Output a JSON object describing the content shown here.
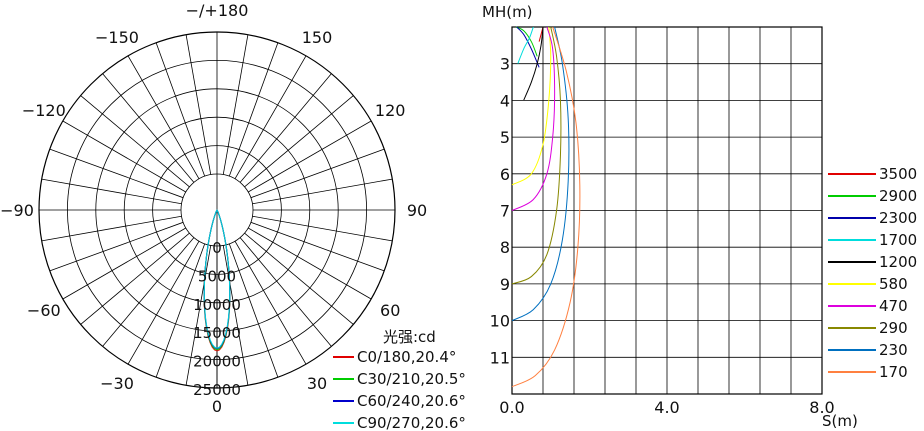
{
  "chart_data": [
    {
      "type": "polar",
      "angle_labels": [
        {
          "angle": 180,
          "text": "−/+180"
        },
        {
          "angle": 150,
          "text": "150"
        },
        {
          "angle": -150,
          "text": "−150"
        },
        {
          "angle": 120,
          "text": "120"
        },
        {
          "angle": -120,
          "text": "−120"
        },
        {
          "angle": 90,
          "text": "90"
        },
        {
          "angle": -90,
          "text": "−90"
        },
        {
          "angle": 60,
          "text": "60"
        },
        {
          "angle": -60,
          "text": "−60"
        },
        {
          "angle": 30,
          "text": "30"
        },
        {
          "angle": -30,
          "text": "−30"
        },
        {
          "angle": 0,
          "text": "0"
        }
      ],
      "radial_ticks": [
        {
          "value": 0,
          "text": "0"
        },
        {
          "value": 5000,
          "text": "5000"
        },
        {
          "value": 10000,
          "text": "10000"
        },
        {
          "value": 15000,
          "text": "15000"
        },
        {
          "value": 20000,
          "text": "20000"
        },
        {
          "value": 25000,
          "text": "25000"
        }
      ],
      "rmax": 25000,
      "legend_title": "光强:cd",
      "series": [
        {
          "name": "C0/180,20.4°",
          "color": "#e00000",
          "beam_angle": 20.4,
          "peak": 24800
        },
        {
          "name": "C30/210,20.5°",
          "color": "#00cc00",
          "beam_angle": 20.5,
          "peak": 24600
        },
        {
          "name": "C60/240,20.6°",
          "color": "#0000cc",
          "beam_angle": 20.6,
          "peak": 24400
        },
        {
          "name": "C90/270,20.6°",
          "color": "#00dddd",
          "beam_angle": 20.6,
          "peak": 24300
        }
      ]
    },
    {
      "type": "line",
      "ylabel": "MH(m)",
      "xlabel": "S(m)",
      "x_ticks": [
        {
          "value": 0,
          "text": "0.0"
        },
        {
          "value": 4,
          "text": "4.0"
        },
        {
          "value": 8,
          "text": "8.0"
        }
      ],
      "y_ticks": [
        {
          "value": 3,
          "text": "3"
        },
        {
          "value": 4,
          "text": "4"
        },
        {
          "value": 5,
          "text": "5"
        },
        {
          "value": 6,
          "text": "6"
        },
        {
          "value": 7,
          "text": "7"
        },
        {
          "value": 8,
          "text": "8"
        },
        {
          "value": 9,
          "text": "9"
        },
        {
          "value": 10,
          "text": "10"
        },
        {
          "value": 11,
          "text": "11"
        }
      ],
      "xlim": [
        0,
        8
      ],
      "ylim": [
        2,
        12
      ],
      "series": [
        {
          "name": "3500",
          "color": "#e00000",
          "points": [
            [
              0.8,
              2.0
            ],
            [
              0.75,
              2.2
            ],
            [
              0.7,
              2.4
            ]
          ]
        },
        {
          "name": "2900",
          "color": "#00cc00",
          "points": [
            [
              0.1,
              2.0
            ],
            [
              0.3,
              2.1
            ],
            [
              0.5,
              2.4
            ],
            [
              0.65,
              2.8
            ]
          ]
        },
        {
          "name": "2300",
          "color": "#0000aa",
          "points": [
            [
              0.12,
              2.0
            ],
            [
              0.3,
              2.2
            ],
            [
              0.5,
              2.6
            ],
            [
              0.7,
              3.1
            ]
          ]
        },
        {
          "name": "1700",
          "color": "#00dddd",
          "points": [
            [
              0.15,
              3.0
            ],
            [
              0.3,
              2.6
            ],
            [
              0.45,
              2.3
            ],
            [
              0.55,
              2.0
            ]
          ]
        },
        {
          "name": "1200",
          "color": "#000000",
          "points": [
            [
              0.3,
              4.0
            ],
            [
              0.5,
              3.5
            ],
            [
              0.65,
              3.0
            ],
            [
              0.75,
              2.5
            ],
            [
              0.8,
              2.0
            ]
          ]
        },
        {
          "name": "580",
          "color": "#ffff00",
          "points": [
            [
              0.0,
              6.3
            ],
            [
              0.5,
              6.0
            ],
            [
              0.8,
              5.2
            ],
            [
              0.95,
              4.0
            ],
            [
              1.0,
              2.8
            ],
            [
              0.95,
              2.0
            ]
          ]
        },
        {
          "name": "470",
          "color": "#dd00dd",
          "points": [
            [
              0.0,
              7.0
            ],
            [
              0.55,
              6.7
            ],
            [
              0.9,
              6.0
            ],
            [
              1.05,
              5.0
            ],
            [
              1.1,
              3.8
            ],
            [
              1.05,
              2.6
            ],
            [
              0.9,
              2.0
            ]
          ]
        },
        {
          "name": "290",
          "color": "#888800",
          "points": [
            [
              0.0,
              9.0
            ],
            [
              0.5,
              8.8
            ],
            [
              0.9,
              8.2
            ],
            [
              1.15,
              7.0
            ],
            [
              1.25,
              5.5
            ],
            [
              1.25,
              4.0
            ],
            [
              1.15,
              2.8
            ],
            [
              1.0,
              2.0
            ]
          ]
        },
        {
          "name": "230",
          "color": "#0070c0",
          "points": [
            [
              0.0,
              10.0
            ],
            [
              0.55,
              9.7
            ],
            [
              1.0,
              9.0
            ],
            [
              1.3,
              7.8
            ],
            [
              1.45,
              6.2
            ],
            [
              1.45,
              4.5
            ],
            [
              1.3,
              3.0
            ],
            [
              1.1,
              2.0
            ]
          ]
        },
        {
          "name": "170",
          "color": "#ff8040",
          "points": [
            [
              0.0,
              11.8
            ],
            [
              0.6,
              11.5
            ],
            [
              1.1,
              10.8
            ],
            [
              1.5,
              9.5
            ],
            [
              1.7,
              8.0
            ],
            [
              1.75,
              6.3
            ],
            [
              1.65,
              4.6
            ],
            [
              1.4,
              3.2
            ],
            [
              1.05,
              2.0
            ]
          ]
        }
      ]
    }
  ]
}
